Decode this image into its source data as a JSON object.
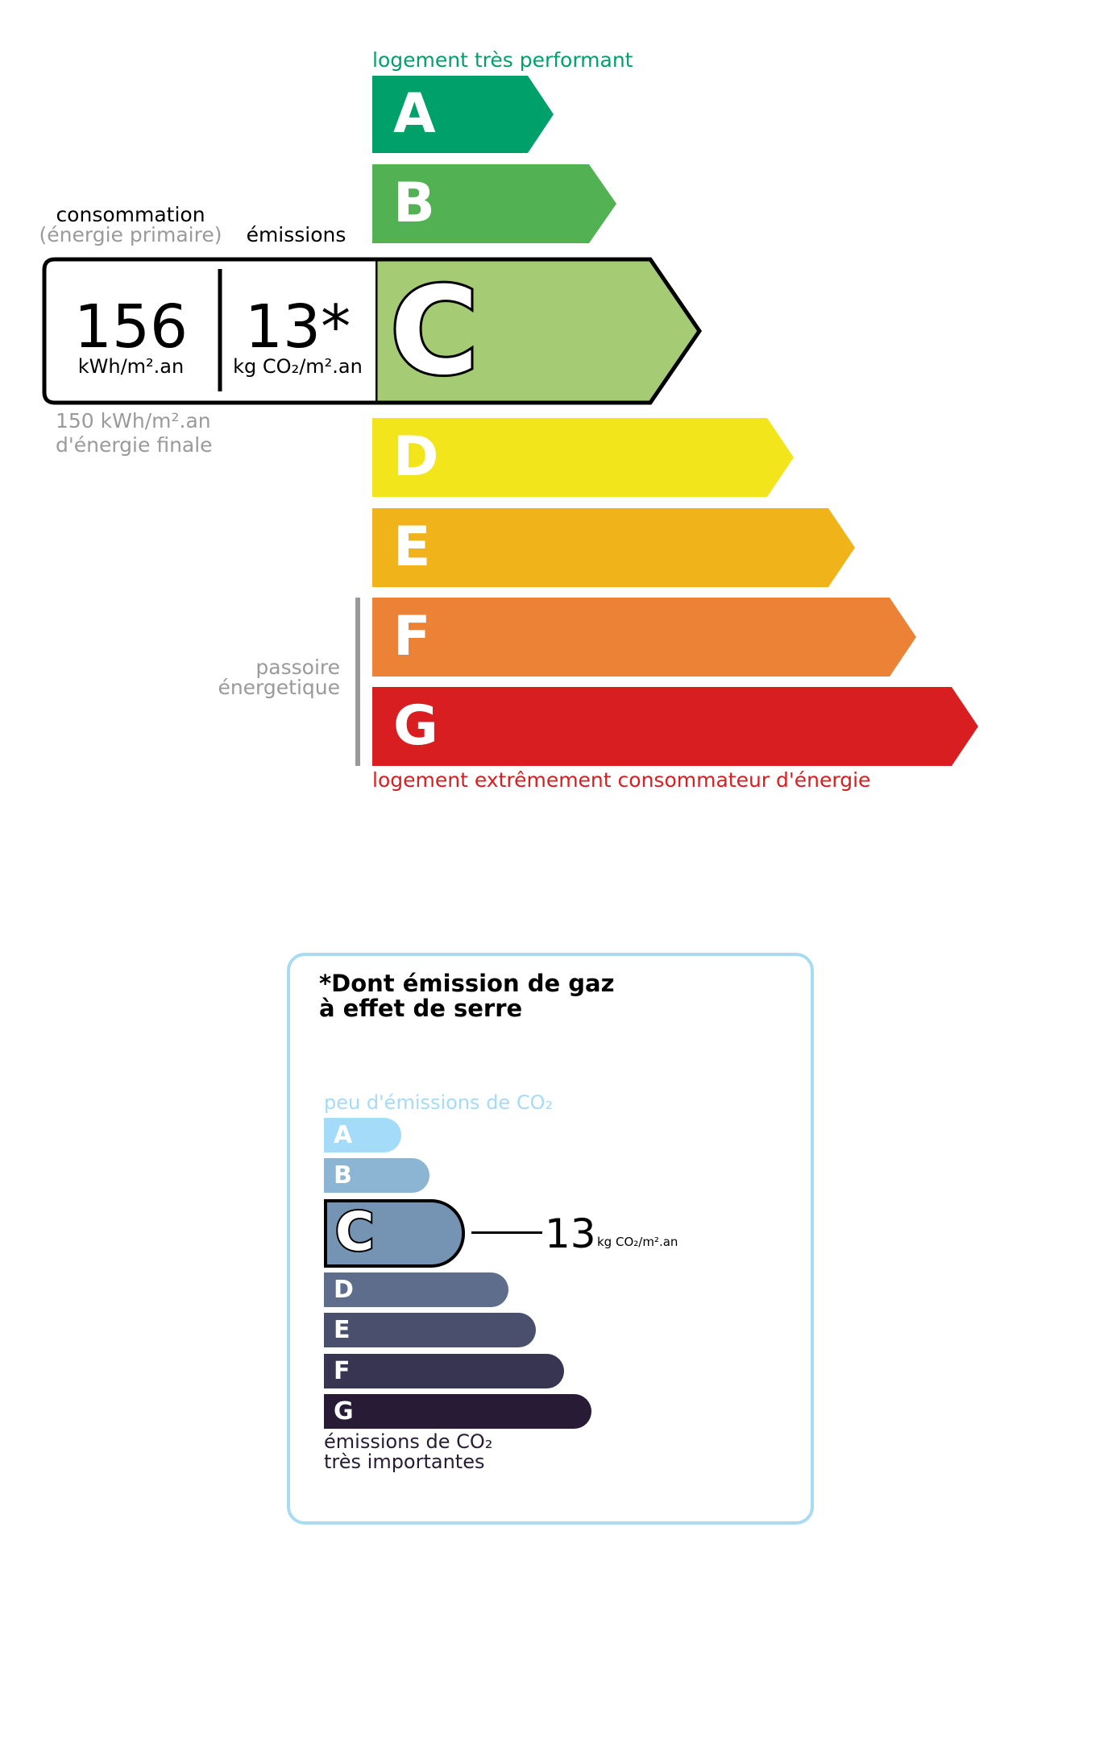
{
  "energy": {
    "top_label": "logement très performant",
    "bottom_label": "logement extrêmement consommateur d'énergie",
    "passoire_line1": "passoire",
    "passoire_line2": "énergetique",
    "classes": [
      {
        "letter": "A",
        "color": "#00a06b"
      },
      {
        "letter": "B",
        "color": "#52b153"
      },
      {
        "letter": "C",
        "color": "#a5cc74"
      },
      {
        "letter": "D",
        "color": "#f2e51b"
      },
      {
        "letter": "E",
        "color": "#f0b41a"
      },
      {
        "letter": "F",
        "color": "#eb8235"
      },
      {
        "letter": "G",
        "color": "#d81e20"
      }
    ],
    "current_class": "C",
    "consumption_label": "consommation",
    "consumption_sublabel": "(énergie primaire)",
    "emissions_label": "émissions",
    "consumption_value": "156",
    "consumption_unit": "kWh/m².an",
    "emissions_value": "13*",
    "emissions_unit": "kg CO₂/m².an",
    "final_energy_line1": "150 kWh/m².an",
    "final_energy_line2": "d'énergie finale",
    "top_label_color": "#00a06b",
    "bottom_label_color": "#d81e20"
  },
  "ges": {
    "title_line1": "*Dont émission de gaz",
    "title_line2": "à effet de serre",
    "top_label": "peu d'émissions de CO₂",
    "bottom_line1": "émissions de CO₂",
    "bottom_line2": "très importantes",
    "classes": [
      {
        "letter": "A",
        "color": "#a4dbf8"
      },
      {
        "letter": "B",
        "color": "#8cb4d3"
      },
      {
        "letter": "C",
        "color": "#7593b3"
      },
      {
        "letter": "D",
        "color": "#5f6d8c"
      },
      {
        "letter": "E",
        "color": "#4b4f6e"
      },
      {
        "letter": "F",
        "color": "#373552"
      },
      {
        "letter": "G",
        "color": "#281b35"
      }
    ],
    "current_class": "C",
    "value": "13",
    "unit": "kg CO₂/m².an",
    "border_color": "#a8daf4"
  }
}
